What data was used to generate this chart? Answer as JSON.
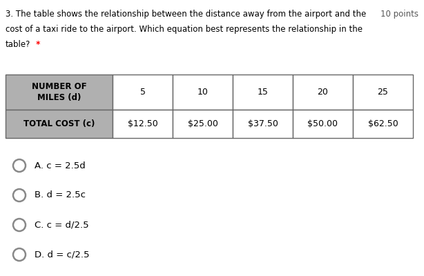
{
  "title_line1": "3. The table shows the relationship between the distance away from the airport and the",
  "title_line2": "cost of a taxi ride to the airport. Which equation best represents the relationship in the",
  "title_line3": "table?",
  "title_asterisk": " *",
  "points_label": "10 points",
  "data_cols": [
    "5",
    "10",
    "15",
    "20",
    "25"
  ],
  "data_row": [
    "$12.50",
    "$25.00",
    "$37.50",
    "$50.00",
    "$62.50"
  ],
  "header_bg": "#b0b0b0",
  "table_border": "#666666",
  "options": [
    "A. c = 2.5d",
    "B. d = 2.5c",
    "C. c = d/2.5",
    "D. d = c/2.5"
  ],
  "bg_color": "#ffffff",
  "text_color": "#000000",
  "font_size_body": 8.5,
  "font_size_table_header": 8.5,
  "font_size_table_data": 9.0,
  "font_size_options": 9.5,
  "font_size_points": 8.5
}
